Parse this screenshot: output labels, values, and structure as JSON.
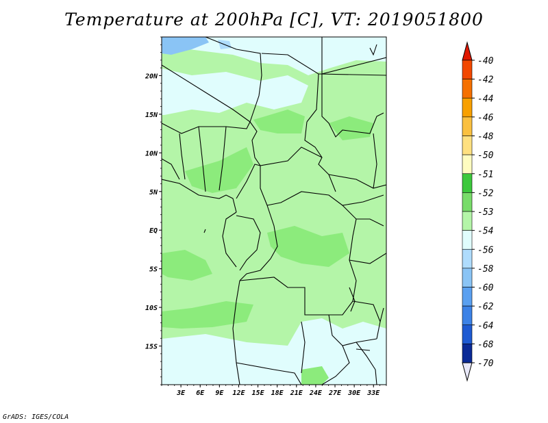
{
  "title": "Temperature at 200hPa [C], VT: 2019051800",
  "footer": "GrADS: IGES/COLA",
  "map": {
    "lon_range": [
      0,
      35
    ],
    "lat_range": [
      -20,
      25
    ],
    "lat_ticks": [
      {
        "label": "20N",
        "value": 20
      },
      {
        "label": "15N",
        "value": 15
      },
      {
        "label": "10N",
        "value": 10
      },
      {
        "label": "5N",
        "value": 5
      },
      {
        "label": "EQ",
        "value": 0
      },
      {
        "label": "5S",
        "value": -5
      },
      {
        "label": "10S",
        "value": -10
      },
      {
        "label": "15S",
        "value": -15
      }
    ],
    "lon_ticks": [
      {
        "label": "3E",
        "value": 3
      },
      {
        "label": "6E",
        "value": 6
      },
      {
        "label": "9E",
        "value": 9
      },
      {
        "label": "12E",
        "value": 12
      },
      {
        "label": "15E",
        "value": 15
      },
      {
        "label": "18E",
        "value": 18
      },
      {
        "label": "21E",
        "value": 21
      },
      {
        "label": "24E",
        "value": 24
      },
      {
        "label": "27E",
        "value": 27
      },
      {
        "label": "30E",
        "value": 30
      },
      {
        "label": "33E",
        "value": 33
      }
    ],
    "colors": {
      "c53": "#b4f5a8",
      "c52": "#8ceb7c",
      "c54": "#e0fdfd",
      "c56": "#afdcfd",
      "c58": "#8ac4f5"
    }
  },
  "legend": {
    "entries": [
      {
        "label": "-40",
        "color": "#f02000"
      },
      {
        "label": "-42",
        "color": "#f24800"
      },
      {
        "label": "-44",
        "color": "#f57000"
      },
      {
        "label": "-46",
        "color": "#f8a000"
      },
      {
        "label": "-48",
        "color": "#fac040"
      },
      {
        "label": "-50",
        "color": "#fee080"
      },
      {
        "label": "-51",
        "color": "#fefcc0"
      },
      {
        "label": "-52",
        "color": "#3cc83c"
      },
      {
        "label": "-53",
        "color": "#78dc6a"
      },
      {
        "label": "-54",
        "color": "#b4f5a8"
      },
      {
        "label": "-56",
        "color": "#e0fdfd"
      },
      {
        "label": "-58",
        "color": "#afdcfd"
      },
      {
        "label": "-60",
        "color": "#8ac4f5"
      },
      {
        "label": "-62",
        "color": "#5aa0f0"
      },
      {
        "label": "-64",
        "color": "#3c82e6"
      },
      {
        "label": "-68",
        "color": "#1e5ad2"
      },
      {
        "label": "-70",
        "color": "#0a2a96"
      }
    ],
    "top_arrow_color": "#e01800",
    "bottom_arrow_color": "#e8e8f8"
  }
}
